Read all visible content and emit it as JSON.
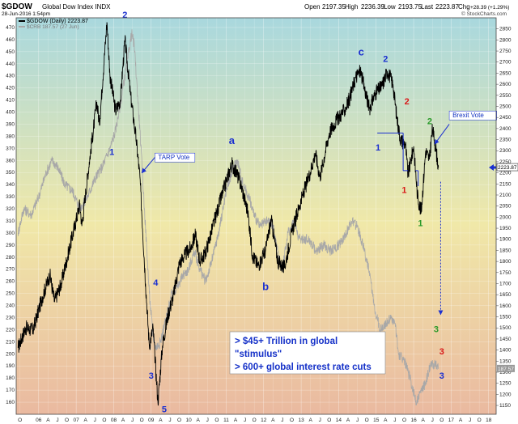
{
  "header": {
    "symbol": "$GDOW",
    "name": "Global Dow Index INDX",
    "datetime": "28-Jun-2016 1:54pm",
    "open_label": "Open",
    "open": "2197.35",
    "high_label": "High",
    "high": "2236.39",
    "low_label": "Low",
    "low": "2193.75",
    "last_label": "Last",
    "last": "2223.87",
    "chg_label": "Chg",
    "chg": "+28.39 (+1.29%)",
    "watermark": "© StockCharts.com",
    "legend_primary": "$GDOW (Daily) 2223.87",
    "legend_secondary": "$CRB 187.57 (27 Jun)"
  },
  "colors": {
    "primary_line": "#000000",
    "secondary_line": "#a8a8a8",
    "label_blue": "#1a2fd0",
    "label_red": "#d81818",
    "label_green": "#2a9a2a",
    "level_line": "#1a2fd0",
    "bg_top": "#a9d8de",
    "bg_mid": "#f0e8a8",
    "bg_bottom": "#eab9a0"
  },
  "chart_data": {
    "type": "line",
    "x_ticks": [
      {
        "t": 2005.5,
        "label": "O"
      },
      {
        "t": 2006.0,
        "label": "06"
      },
      {
        "t": 2006.25,
        "label": "A"
      },
      {
        "t": 2006.5,
        "label": "J"
      },
      {
        "t": 2006.75,
        "label": "O"
      },
      {
        "t": 2007.0,
        "label": "07"
      },
      {
        "t": 2007.25,
        "label": "A"
      },
      {
        "t": 2007.5,
        "label": "J"
      },
      {
        "t": 2007.75,
        "label": "O"
      },
      {
        "t": 2008.0,
        "label": "08"
      },
      {
        "t": 2008.25,
        "label": "A"
      },
      {
        "t": 2008.5,
        "label": "J"
      },
      {
        "t": 2008.75,
        "label": "O"
      },
      {
        "t": 2009.0,
        "label": "09"
      },
      {
        "t": 2009.25,
        "label": "A"
      },
      {
        "t": 2009.5,
        "label": "J"
      },
      {
        "t": 2009.75,
        "label": "O"
      },
      {
        "t": 2010.0,
        "label": "10"
      },
      {
        "t": 2010.25,
        "label": "A"
      },
      {
        "t": 2010.5,
        "label": "J"
      },
      {
        "t": 2010.75,
        "label": "O"
      },
      {
        "t": 2011.0,
        "label": "11"
      },
      {
        "t": 2011.25,
        "label": "A"
      },
      {
        "t": 2011.5,
        "label": "J"
      },
      {
        "t": 2011.75,
        "label": "O"
      },
      {
        "t": 2012.0,
        "label": "12"
      },
      {
        "t": 2012.25,
        "label": "A"
      },
      {
        "t": 2012.5,
        "label": "J"
      },
      {
        "t": 2012.75,
        "label": "O"
      },
      {
        "t": 2013.0,
        "label": "13"
      },
      {
        "t": 2013.25,
        "label": "A"
      },
      {
        "t": 2013.5,
        "label": "J"
      },
      {
        "t": 2013.75,
        "label": "O"
      },
      {
        "t": 2014.0,
        "label": "14"
      },
      {
        "t": 2014.25,
        "label": "A"
      },
      {
        "t": 2014.5,
        "label": "J"
      },
      {
        "t": 2014.75,
        "label": "O"
      },
      {
        "t": 2015.0,
        "label": "15"
      },
      {
        "t": 2015.25,
        "label": "A"
      },
      {
        "t": 2015.5,
        "label": "J"
      },
      {
        "t": 2015.75,
        "label": "O"
      },
      {
        "t": 2016.0,
        "label": "16"
      },
      {
        "t": 2016.25,
        "label": "A"
      },
      {
        "t": 2016.5,
        "label": "J"
      },
      {
        "t": 2016.75,
        "label": "O"
      },
      {
        "t": 2017.0,
        "label": "17"
      },
      {
        "t": 2017.25,
        "label": "A"
      },
      {
        "t": 2017.5,
        "label": "J"
      },
      {
        "t": 2017.75,
        "label": "O"
      },
      {
        "t": 2018.0,
        "label": "18"
      }
    ],
    "x_range": [
      2005.4,
      2018.2
    ],
    "left_axis": {
      "ylim": [
        150,
        478
      ],
      "ticks": [
        160,
        170,
        180,
        190,
        200,
        210,
        220,
        230,
        240,
        250,
        260,
        270,
        280,
        290,
        300,
        310,
        320,
        330,
        340,
        350,
        360,
        370,
        380,
        390,
        400,
        410,
        420,
        430,
        440,
        450,
        460,
        470
      ]
    },
    "right_axis": {
      "ylim": [
        1110,
        2900
      ],
      "ticks": [
        1150,
        1200,
        1250,
        1300,
        1350,
        1400,
        1450,
        1500,
        1550,
        1600,
        1650,
        1700,
        1750,
        1800,
        1850,
        1900,
        1950,
        2000,
        2050,
        2100,
        2150,
        2200,
        2250,
        2300,
        2350,
        2400,
        2450,
        2500,
        2550,
        2600,
        2650,
        2700,
        2750,
        2800,
        2850
      ]
    },
    "series": [
      {
        "name": "$GDOW (Daily) 2223.87",
        "axis": "right",
        "points": [
          [
            2005.45,
            1410
          ],
          [
            2005.65,
            1500
          ],
          [
            2005.85,
            1490
          ],
          [
            2006.1,
            1640
          ],
          [
            2006.3,
            1740
          ],
          [
            2006.42,
            1620
          ],
          [
            2006.6,
            1700
          ],
          [
            2006.85,
            1880
          ],
          [
            2007.1,
            2060
          ],
          [
            2007.15,
            1960
          ],
          [
            2007.35,
            2250
          ],
          [
            2007.55,
            2520
          ],
          [
            2007.62,
            2420
          ],
          [
            2007.82,
            2880
          ],
          [
            2007.9,
            2640
          ],
          [
            2008.05,
            2480
          ],
          [
            2008.18,
            2530
          ],
          [
            2008.3,
            2800
          ],
          [
            2008.45,
            2550
          ],
          [
            2008.6,
            2350
          ],
          [
            2008.7,
            2180
          ],
          [
            2008.85,
            1700
          ],
          [
            2008.95,
            1420
          ],
          [
            2009.05,
            1500
          ],
          [
            2009.18,
            1165
          ],
          [
            2009.3,
            1420
          ],
          [
            2009.45,
            1560
          ],
          [
            2009.6,
            1650
          ],
          [
            2009.75,
            1790
          ],
          [
            2009.9,
            1830
          ],
          [
            2010.05,
            1860
          ],
          [
            2010.18,
            1920
          ],
          [
            2010.3,
            1800
          ],
          [
            2010.45,
            1840
          ],
          [
            2010.6,
            1930
          ],
          [
            2010.8,
            2050
          ],
          [
            2011.0,
            2160
          ],
          [
            2011.15,
            2240
          ],
          [
            2011.3,
            2190
          ],
          [
            2011.42,
            2130
          ],
          [
            2011.58,
            2020
          ],
          [
            2011.7,
            1830
          ],
          [
            2011.85,
            1780
          ],
          [
            2012.05,
            1850
          ],
          [
            2012.2,
            1990
          ],
          [
            2012.38,
            1800
          ],
          [
            2012.55,
            1770
          ],
          [
            2012.75,
            1930
          ],
          [
            2012.95,
            2050
          ],
          [
            2013.2,
            2180
          ],
          [
            2013.38,
            2290
          ],
          [
            2013.5,
            2180
          ],
          [
            2013.75,
            2380
          ],
          [
            2013.95,
            2440
          ],
          [
            2014.15,
            2480
          ],
          [
            2014.3,
            2540
          ],
          [
            2014.45,
            2630
          ],
          [
            2014.58,
            2660
          ],
          [
            2014.72,
            2560
          ],
          [
            2014.82,
            2490
          ],
          [
            2014.98,
            2560
          ],
          [
            2015.15,
            2590
          ],
          [
            2015.3,
            2660
          ],
          [
            2015.45,
            2600
          ],
          [
            2015.55,
            2450
          ],
          [
            2015.65,
            2350
          ],
          [
            2015.78,
            2330
          ],
          [
            2015.85,
            2190
          ],
          [
            2016.0,
            2320
          ],
          [
            2016.1,
            2100
          ],
          [
            2016.2,
            2020
          ],
          [
            2016.32,
            2300
          ],
          [
            2016.42,
            2260
          ],
          [
            2016.5,
            2400
          ],
          [
            2016.55,
            2350
          ],
          [
            2016.6,
            2300
          ],
          [
            2016.66,
            2224
          ]
        ]
      },
      {
        "name": "$CRB 187.57 (27 Jun)",
        "axis": "left",
        "points": [
          [
            2005.45,
            300
          ],
          [
            2005.6,
            320
          ],
          [
            2005.8,
            315
          ],
          [
            2006.0,
            330
          ],
          [
            2006.2,
            350
          ],
          [
            2006.35,
            360
          ],
          [
            2006.5,
            355
          ],
          [
            2006.7,
            340
          ],
          [
            2006.9,
            335
          ],
          [
            2007.1,
            320
          ],
          [
            2007.3,
            330
          ],
          [
            2007.5,
            345
          ],
          [
            2007.7,
            355
          ],
          [
            2007.9,
            370
          ],
          [
            2008.05,
            385
          ],
          [
            2008.2,
            410
          ],
          [
            2008.35,
            440
          ],
          [
            2008.48,
            465
          ],
          [
            2008.55,
            455
          ],
          [
            2008.7,
            385
          ],
          [
            2008.82,
            320
          ],
          [
            2008.95,
            250
          ],
          [
            2009.05,
            215
          ],
          [
            2009.12,
            205
          ],
          [
            2009.25,
            210
          ],
          [
            2009.4,
            230
          ],
          [
            2009.55,
            250
          ],
          [
            2009.7,
            255
          ],
          [
            2009.85,
            265
          ],
          [
            2010.0,
            270
          ],
          [
            2010.15,
            285
          ],
          [
            2010.3,
            270
          ],
          [
            2010.45,
            260
          ],
          [
            2010.6,
            275
          ],
          [
            2010.8,
            300
          ],
          [
            2011.0,
            335
          ],
          [
            2011.2,
            355
          ],
          [
            2011.3,
            360
          ],
          [
            2011.45,
            340
          ],
          [
            2011.6,
            330
          ],
          [
            2011.75,
            315
          ],
          [
            2011.9,
            305
          ],
          [
            2012.1,
            310
          ],
          [
            2012.25,
            305
          ],
          [
            2012.4,
            280
          ],
          [
            2012.5,
            270
          ],
          [
            2012.65,
            300
          ],
          [
            2012.8,
            310
          ],
          [
            2012.95,
            295
          ],
          [
            2013.2,
            295
          ],
          [
            2013.4,
            285
          ],
          [
            2013.6,
            290
          ],
          [
            2013.8,
            285
          ],
          [
            2014.0,
            290
          ],
          [
            2014.2,
            300
          ],
          [
            2014.35,
            310
          ],
          [
            2014.5,
            305
          ],
          [
            2014.65,
            290
          ],
          [
            2014.8,
            270
          ],
          [
            2014.95,
            240
          ],
          [
            2015.1,
            220
          ],
          [
            2015.25,
            225
          ],
          [
            2015.4,
            230
          ],
          [
            2015.5,
            225
          ],
          [
            2015.6,
            200
          ],
          [
            2015.75,
            195
          ],
          [
            2015.9,
            180
          ],
          [
            2016.0,
            168
          ],
          [
            2016.08,
            160
          ],
          [
            2016.18,
            168
          ],
          [
            2016.3,
            175
          ],
          [
            2016.45,
            190
          ],
          [
            2016.55,
            192
          ],
          [
            2016.66,
            187.57
          ]
        ]
      }
    ],
    "last_values": {
      "primary": "2223.87",
      "secondary": "187.57"
    },
    "wave_labels": [
      {
        "text": "1",
        "t": 2007.95,
        "v": 2280,
        "color": "blue",
        "size": "small"
      },
      {
        "text": "2",
        "t": 2008.3,
        "v": 2900,
        "color": "blue",
        "size": "small"
      },
      {
        "text": "3",
        "t": 2009.0,
        "v": 1270,
        "color": "blue",
        "size": "small"
      },
      {
        "text": "4",
        "t": 2009.12,
        "v": 1690,
        "color": "blue",
        "size": "small"
      },
      {
        "text": "5",
        "t": 2009.35,
        "v": 1120,
        "color": "blue",
        "size": "small"
      },
      {
        "text": "a",
        "t": 2011.15,
        "v": 2330,
        "color": "blue",
        "size": "big"
      },
      {
        "text": "b",
        "t": 2012.05,
        "v": 1670,
        "color": "blue",
        "size": "big"
      },
      {
        "text": "c",
        "t": 2014.6,
        "v": 2730,
        "color": "blue",
        "size": "big"
      },
      {
        "text": "2",
        "t": 2015.25,
        "v": 2700,
        "color": "blue",
        "size": "small"
      },
      {
        "text": "1",
        "t": 2015.05,
        "v": 2300,
        "color": "blue",
        "size": "small"
      },
      {
        "text": "2",
        "t": 2015.82,
        "v": 2510,
        "color": "red",
        "size": "small"
      },
      {
        "text": "1",
        "t": 2015.75,
        "v": 2110,
        "color": "red",
        "size": "small"
      },
      {
        "text": "2",
        "t": 2016.43,
        "v": 2420,
        "color": "green",
        "size": "small"
      },
      {
        "text": "1",
        "t": 2016.18,
        "v": 1960,
        "color": "green",
        "size": "small"
      },
      {
        "text": "3",
        "t": 2016.6,
        "v": 1480,
        "color": "green",
        "size": "small"
      },
      {
        "text": "3",
        "t": 2016.75,
        "v": 1380,
        "color": "red",
        "size": "small"
      },
      {
        "text": "3",
        "t": 2016.75,
        "v": 1270,
        "color": "blue",
        "size": "small"
      }
    ],
    "annotations": [
      {
        "text": "TARP Vote",
        "t": 2009.1,
        "v": 2260
      },
      {
        "text": "Brexit Vote",
        "t": 2016.95,
        "v": 2450
      }
    ],
    "text_box": {
      "lines": [
        "> $45+ Trillion in global",
        "\"stimulus\"",
        "> 600+ global interest rate cuts"
      ]
    }
  }
}
